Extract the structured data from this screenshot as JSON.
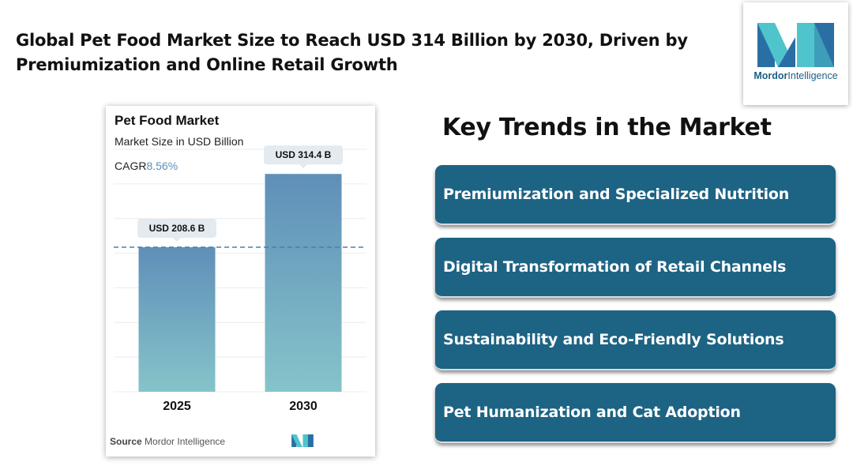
{
  "headline": "Global Pet Food Market Size to Reach USD 314 Billion by 2030, Driven by Premiumization and Online Retail Growth",
  "logo": {
    "brand_strong": "Mordor",
    "brand_light": "Intelligence",
    "colors": [
      "#4fc4cc",
      "#2a6fa3"
    ]
  },
  "chart_card": {
    "title": "Pet Food Market",
    "subtitle": "Market Size in USD Billion",
    "cagr_label": "CAGR",
    "cagr_value": "8.56%",
    "source_label": "Source",
    "source_value": "Mordor Intelligence"
  },
  "chart_data": {
    "type": "bar",
    "title": "Pet Food Market",
    "ylabel": "Market Size in USD Billion",
    "categories": [
      "2025",
      "2030"
    ],
    "values": [
      208.6,
      314.4
    ],
    "data_labels": [
      "USD 208.6 B",
      "USD 314.4 B"
    ],
    "ylim": [
      0,
      350
    ],
    "grid": true,
    "reference_line_value": 208.6,
    "bar_gradient": [
      "#5f8fb8",
      "#85c4ca"
    ]
  },
  "trends": {
    "title": "Key Trends in the Market",
    "items": [
      "Premiumization and Specialized Nutrition",
      "Digital Transformation of Retail Channels",
      "Sustainability and Eco-Friendly Solutions",
      "Pet Humanization and Cat Adoption"
    ],
    "color": "#1d6384"
  }
}
